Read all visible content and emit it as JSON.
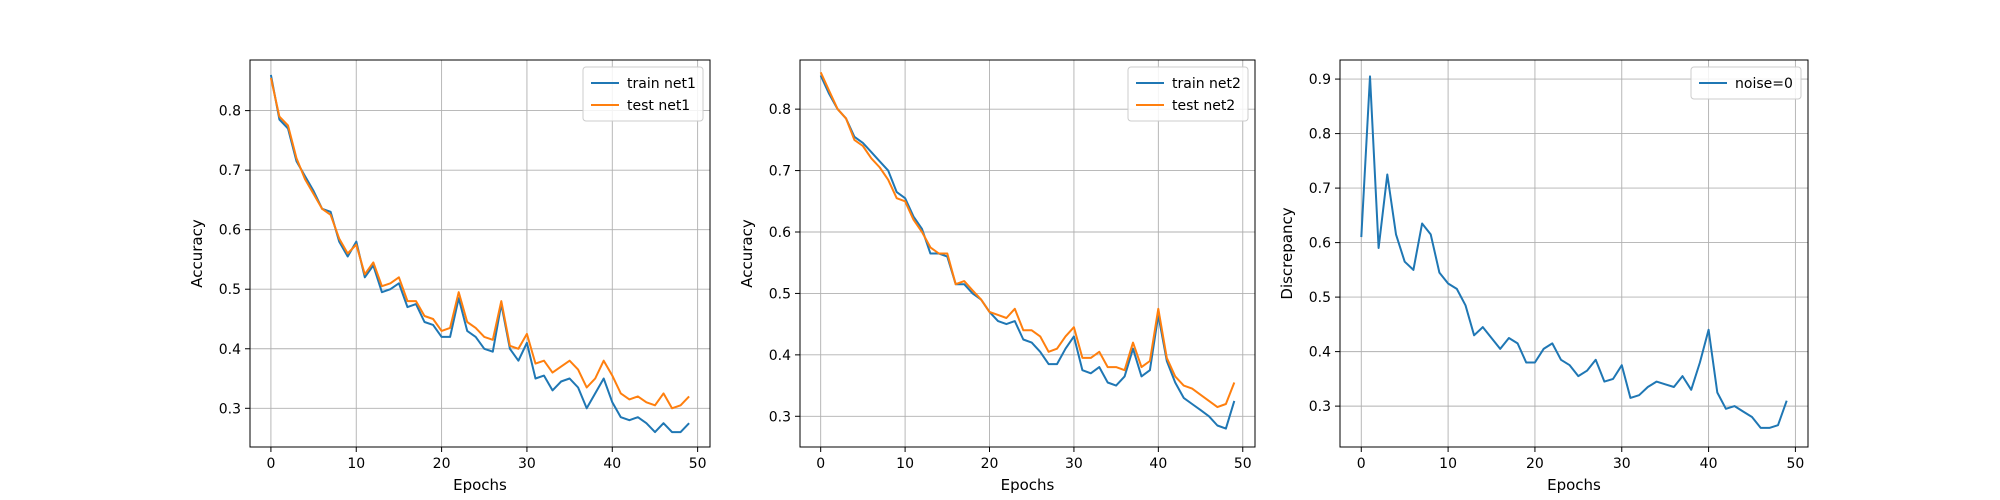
{
  "chart_data": [
    {
      "type": "line",
      "xlabel": "Epochs",
      "ylabel": "Accuracy",
      "xlim": [
        -2.45,
        51.45
      ],
      "ylim": [
        0.235,
        0.885
      ],
      "xticks": [
        0,
        10,
        20,
        30,
        40,
        50
      ],
      "yticks": [
        0.3,
        0.4,
        0.5,
        0.6,
        0.7,
        0.8
      ],
      "grid": true,
      "legend_position": "top-right",
      "series": [
        {
          "name": "train net1",
          "color": "#1f77b4",
          "x": [
            0,
            1,
            2,
            3,
            4,
            5,
            6,
            7,
            8,
            9,
            10,
            11,
            12,
            13,
            14,
            15,
            16,
            17,
            18,
            19,
            20,
            21,
            22,
            23,
            24,
            25,
            26,
            27,
            28,
            29,
            30,
            31,
            32,
            33,
            34,
            35,
            36,
            37,
            38,
            39,
            40,
            41,
            42,
            43,
            44,
            45,
            46,
            47,
            48,
            49
          ],
          "values": [
            0.86,
            0.785,
            0.77,
            0.715,
            0.69,
            0.665,
            0.635,
            0.63,
            0.58,
            0.555,
            0.58,
            0.52,
            0.54,
            0.495,
            0.5,
            0.51,
            0.47,
            0.475,
            0.445,
            0.44,
            0.42,
            0.42,
            0.485,
            0.43,
            0.42,
            0.4,
            0.395,
            0.475,
            0.4,
            0.38,
            0.41,
            0.35,
            0.355,
            0.33,
            0.345,
            0.35,
            0.335,
            0.3,
            0.325,
            0.35,
            0.31,
            0.285,
            0.28,
            0.285,
            0.275,
            0.26,
            0.275,
            0.26,
            0.26,
            0.275
          ]
        },
        {
          "name": "test net1",
          "color": "#ff7f0e",
          "x": [
            0,
            1,
            2,
            3,
            4,
            5,
            6,
            7,
            8,
            9,
            10,
            11,
            12,
            13,
            14,
            15,
            16,
            17,
            18,
            19,
            20,
            21,
            22,
            23,
            24,
            25,
            26,
            27,
            28,
            29,
            30,
            31,
            32,
            33,
            34,
            35,
            36,
            37,
            38,
            39,
            40,
            41,
            42,
            43,
            44,
            45,
            46,
            47,
            48,
            49
          ],
          "values": [
            0.855,
            0.79,
            0.775,
            0.72,
            0.685,
            0.66,
            0.635,
            0.625,
            0.585,
            0.56,
            0.575,
            0.525,
            0.545,
            0.505,
            0.51,
            0.52,
            0.48,
            0.48,
            0.455,
            0.45,
            0.43,
            0.435,
            0.495,
            0.445,
            0.435,
            0.42,
            0.415,
            0.48,
            0.405,
            0.4,
            0.425,
            0.375,
            0.38,
            0.36,
            0.37,
            0.38,
            0.365,
            0.335,
            0.35,
            0.38,
            0.355,
            0.325,
            0.315,
            0.32,
            0.31,
            0.305,
            0.325,
            0.3,
            0.305,
            0.32
          ]
        }
      ]
    },
    {
      "type": "line",
      "xlabel": "Epochs",
      "ylabel": "Accuracy",
      "xlim": [
        -2.45,
        51.45
      ],
      "ylim": [
        0.25,
        0.88
      ],
      "xticks": [
        0,
        10,
        20,
        30,
        40,
        50
      ],
      "yticks": [
        0.3,
        0.4,
        0.5,
        0.6,
        0.7,
        0.8
      ],
      "grid": true,
      "legend_position": "top-right",
      "series": [
        {
          "name": "train net2",
          "color": "#1f77b4",
          "x": [
            0,
            1,
            2,
            3,
            4,
            5,
            6,
            7,
            8,
            9,
            10,
            11,
            12,
            13,
            14,
            15,
            16,
            17,
            18,
            19,
            20,
            21,
            22,
            23,
            24,
            25,
            26,
            27,
            28,
            29,
            30,
            31,
            32,
            33,
            34,
            35,
            36,
            37,
            38,
            39,
            40,
            41,
            42,
            43,
            44,
            45,
            46,
            47,
            48,
            49
          ],
          "values": [
            0.855,
            0.825,
            0.8,
            0.785,
            0.755,
            0.745,
            0.73,
            0.715,
            0.7,
            0.665,
            0.655,
            0.625,
            0.605,
            0.565,
            0.565,
            0.56,
            0.515,
            0.515,
            0.5,
            0.49,
            0.47,
            0.455,
            0.45,
            0.455,
            0.425,
            0.42,
            0.405,
            0.385,
            0.385,
            0.41,
            0.43,
            0.375,
            0.37,
            0.38,
            0.355,
            0.35,
            0.365,
            0.41,
            0.365,
            0.375,
            0.465,
            0.39,
            0.355,
            0.33,
            0.32,
            0.31,
            0.3,
            0.285,
            0.28,
            0.325
          ]
        },
        {
          "name": "test net2",
          "color": "#ff7f0e",
          "x": [
            0,
            1,
            2,
            3,
            4,
            5,
            6,
            7,
            8,
            9,
            10,
            11,
            12,
            13,
            14,
            15,
            16,
            17,
            18,
            19,
            20,
            21,
            22,
            23,
            24,
            25,
            26,
            27,
            28,
            29,
            30,
            31,
            32,
            33,
            34,
            35,
            36,
            37,
            38,
            39,
            40,
            41,
            42,
            43,
            44,
            45,
            46,
            47,
            48,
            49
          ],
          "values": [
            0.86,
            0.83,
            0.8,
            0.785,
            0.75,
            0.74,
            0.72,
            0.705,
            0.685,
            0.655,
            0.65,
            0.62,
            0.6,
            0.575,
            0.565,
            0.565,
            0.515,
            0.52,
            0.505,
            0.49,
            0.47,
            0.465,
            0.46,
            0.475,
            0.44,
            0.44,
            0.43,
            0.405,
            0.41,
            0.43,
            0.445,
            0.395,
            0.395,
            0.405,
            0.38,
            0.38,
            0.375,
            0.42,
            0.38,
            0.39,
            0.475,
            0.395,
            0.365,
            0.35,
            0.345,
            0.335,
            0.325,
            0.315,
            0.32,
            0.355
          ]
        }
      ]
    },
    {
      "type": "line",
      "xlabel": "Epochs",
      "ylabel": "Discrepancy",
      "xlim": [
        -2.45,
        51.45
      ],
      "ylim": [
        0.225,
        0.935
      ],
      "xticks": [
        0,
        10,
        20,
        30,
        40,
        50
      ],
      "yticks": [
        0.3,
        0.4,
        0.5,
        0.6,
        0.7,
        0.8,
        0.9
      ],
      "grid": true,
      "legend_position": "top-right",
      "series": [
        {
          "name": "noise=0",
          "color": "#1f77b4",
          "x": [
            0,
            1,
            2,
            3,
            4,
            5,
            6,
            7,
            8,
            9,
            10,
            11,
            12,
            13,
            14,
            15,
            16,
            17,
            18,
            19,
            20,
            21,
            22,
            23,
            24,
            25,
            26,
            27,
            28,
            29,
            30,
            31,
            32,
            33,
            34,
            35,
            36,
            37,
            38,
            39,
            40,
            41,
            42,
            43,
            44,
            45,
            46,
            47,
            48,
            49
          ],
          "values": [
            0.61,
            0.905,
            0.59,
            0.725,
            0.615,
            0.565,
            0.55,
            0.635,
            0.615,
            0.545,
            0.525,
            0.515,
            0.485,
            0.43,
            0.445,
            0.425,
            0.405,
            0.425,
            0.415,
            0.38,
            0.38,
            0.405,
            0.415,
            0.385,
            0.375,
            0.355,
            0.365,
            0.385,
            0.345,
            0.35,
            0.375,
            0.315,
            0.32,
            0.335,
            0.345,
            0.34,
            0.335,
            0.355,
            0.33,
            0.38,
            0.44,
            0.325,
            0.295,
            0.3,
            0.29,
            0.28,
            0.26,
            0.26,
            0.265,
            0.31
          ]
        }
      ]
    }
  ]
}
